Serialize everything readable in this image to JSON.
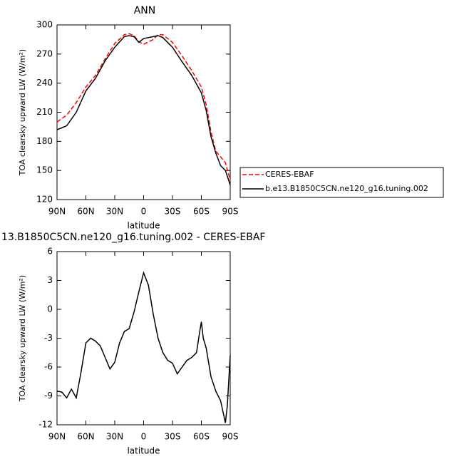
{
  "chart_data": [
    {
      "type": "line",
      "title": "ANN",
      "xlabel": "latitude",
      "ylabel": "TOA clearsky upward LW (W/m²)",
      "x": [
        90,
        80,
        70,
        60,
        50,
        40,
        30,
        20,
        15,
        10,
        5,
        0,
        -10,
        -15,
        -20,
        -30,
        -40,
        -50,
        -60,
        -65,
        -70,
        -75,
        -80,
        -85,
        -90
      ],
      "series": [
        {
          "name": "CERES-EBAF",
          "color": "#ff0000",
          "dashed": true,
          "values": [
            200,
            207,
            220,
            236,
            248,
            265,
            281,
            290,
            291,
            289,
            283,
            280,
            285,
            290,
            290,
            282,
            268,
            253,
            236,
            218,
            190,
            170,
            164,
            158,
            140
          ]
        },
        {
          "name": "b.e13.B1850C5CN.ne120_g16.tuning.002",
          "color": "#000000",
          "dashed": false,
          "values": [
            192,
            196,
            210,
            232,
            245,
            263,
            277,
            288,
            289,
            288,
            282,
            286,
            288,
            289,
            287,
            277,
            262,
            248,
            230,
            212,
            185,
            168,
            155,
            150,
            135
          ]
        }
      ],
      "xlim": [
        90,
        -90
      ],
      "xticks": [
        {
          "value": 90,
          "label": "90N"
        },
        {
          "value": 60,
          "label": "60N"
        },
        {
          "value": 30,
          "label": "30N"
        },
        0,
        {
          "value": -30,
          "label": "30S"
        },
        {
          "value": -60,
          "label": "60S"
        },
        {
          "value": -90,
          "label": "90S"
        }
      ],
      "ylim": [
        120,
        300
      ],
      "yticks": [
        120,
        150,
        180,
        210,
        240,
        270,
        300
      ]
    },
    {
      "type": "line",
      "title": "13.B1850C5CN.ne120_g16.tuning.002 - CERES-EBAF",
      "xlabel": "latitude",
      "ylabel": "TOA clearsky upward LW (W/m²)",
      "x": [
        90,
        85,
        80,
        75,
        70,
        65,
        60,
        55,
        50,
        45,
        40,
        35,
        30,
        25,
        20,
        15,
        10,
        5,
        0,
        -5,
        -10,
        -15,
        -20,
        -25,
        -30,
        -35,
        -40,
        -45,
        -50,
        -55,
        -58,
        -60,
        -62,
        -65,
        -70,
        -75,
        -80,
        -85,
        -87,
        -90
      ],
      "series": [
        {
          "color": "#000000",
          "dashed": false,
          "values": [
            -8.5,
            -8.6,
            -9.2,
            -8.3,
            -9.2,
            -6.5,
            -3.5,
            -3,
            -3.3,
            -3.8,
            -5,
            -6.2,
            -5.5,
            -3.5,
            -2.3,
            -2,
            -0.3,
            1.8,
            3.8,
            2.5,
            -0.5,
            -3,
            -4.5,
            -5.3,
            -5.6,
            -6.7,
            -6,
            -5.3,
            -5,
            -4.5,
            -2.5,
            -1.3,
            -3,
            -4,
            -7,
            -8.5,
            -9.5,
            -11.8,
            -10,
            -4.8
          ]
        }
      ],
      "xlim": [
        90,
        -90
      ],
      "xticks": [
        {
          "value": 90,
          "label": "90N"
        },
        {
          "value": 60,
          "label": "60N"
        },
        {
          "value": 30,
          "label": "30N"
        },
        0,
        {
          "value": -30,
          "label": "30S"
        },
        {
          "value": -60,
          "label": "60S"
        },
        {
          "value": -90,
          "label": "90S"
        }
      ],
      "ylim": [
        -12,
        6
      ],
      "yticks": [
        -12,
        -9,
        -6,
        -3,
        0,
        3,
        6
      ]
    }
  ]
}
